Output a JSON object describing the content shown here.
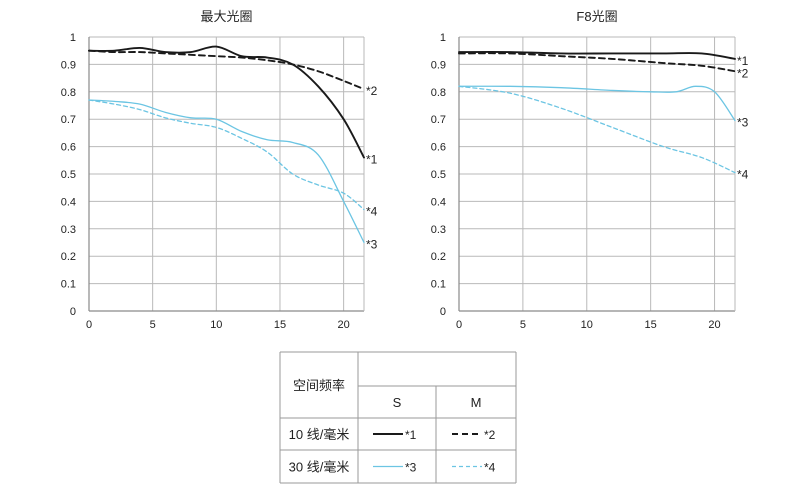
{
  "colors": {
    "dark": "#1a1a1a",
    "light": "#6cc5e3",
    "grid": "#b9b9b9",
    "axis": "#8a8a8a",
    "text": "#222222"
  },
  "chart_data": [
    {
      "type": "line",
      "title": "最大光圈",
      "xlim": [
        0,
        21.6
      ],
      "ylim": [
        0,
        1
      ],
      "x_ticks": [
        "0",
        "5",
        "10",
        "15",
        "20"
      ],
      "y_ticks": [
        "0",
        "0.1",
        "0.2",
        "0.3",
        "0.4",
        "0.5",
        "0.6",
        "0.7",
        "0.8",
        "0.9",
        "1"
      ],
      "grid": true,
      "series": [
        {
          "name": "*1",
          "color": "dark",
          "dash": "solid",
          "points": [
            [
              0,
              0.95
            ],
            [
              2,
              0.95
            ],
            [
              4,
              0.96
            ],
            [
              6,
              0.945
            ],
            [
              8,
              0.945
            ],
            [
              10,
              0.965
            ],
            [
              12,
              0.93
            ],
            [
              14,
              0.925
            ],
            [
              16,
              0.9
            ],
            [
              18,
              0.82
            ],
            [
              20,
              0.7
            ],
            [
              21.6,
              0.56
            ]
          ]
        },
        {
          "name": "*2",
          "color": "dark",
          "dash": "dashed",
          "points": [
            [
              0,
              0.95
            ],
            [
              2,
              0.945
            ],
            [
              4,
              0.945
            ],
            [
              6,
              0.94
            ],
            [
              8,
              0.935
            ],
            [
              10,
              0.93
            ],
            [
              12,
              0.925
            ],
            [
              14,
              0.915
            ],
            [
              16,
              0.9
            ],
            [
              18,
              0.875
            ],
            [
              20,
              0.84
            ],
            [
              21.6,
              0.81
            ]
          ]
        },
        {
          "name": "*3",
          "color": "light",
          "dash": "solid",
          "points": [
            [
              0,
              0.77
            ],
            [
              2,
              0.765
            ],
            [
              4,
              0.755
            ],
            [
              6,
              0.725
            ],
            [
              8,
              0.705
            ],
            [
              10,
              0.7
            ],
            [
              12,
              0.655
            ],
            [
              14,
              0.625
            ],
            [
              16,
              0.615
            ],
            [
              18,
              0.57
            ],
            [
              20,
              0.4
            ],
            [
              21.6,
              0.25
            ]
          ]
        },
        {
          "name": "*4",
          "color": "light",
          "dash": "dashed",
          "points": [
            [
              0,
              0.77
            ],
            [
              2,
              0.755
            ],
            [
              4,
              0.735
            ],
            [
              6,
              0.705
            ],
            [
              8,
              0.685
            ],
            [
              10,
              0.67
            ],
            [
              12,
              0.63
            ],
            [
              14,
              0.58
            ],
            [
              16,
              0.5
            ],
            [
              18,
              0.46
            ],
            [
              20,
              0.43
            ],
            [
              21.6,
              0.37
            ]
          ]
        }
      ]
    },
    {
      "type": "line",
      "title": "F8光圈",
      "xlim": [
        0,
        21.6
      ],
      "ylim": [
        0,
        1
      ],
      "x_ticks": [
        "0",
        "5",
        "10",
        "15",
        "20"
      ],
      "y_ticks": [
        "0",
        "0.1",
        "0.2",
        "0.3",
        "0.4",
        "0.5",
        "0.6",
        "0.7",
        "0.8",
        "0.9",
        "1"
      ],
      "grid": true,
      "series": [
        {
          "name": "*1",
          "color": "dark",
          "dash": "solid",
          "points": [
            [
              0,
              0.945
            ],
            [
              4,
              0.945
            ],
            [
              8,
              0.94
            ],
            [
              12,
              0.94
            ],
            [
              16,
              0.94
            ],
            [
              19,
              0.94
            ],
            [
              21.6,
              0.92
            ]
          ]
        },
        {
          "name": "*2",
          "color": "dark",
          "dash": "dashed",
          "points": [
            [
              0,
              0.94
            ],
            [
              4,
              0.94
            ],
            [
              8,
              0.93
            ],
            [
              12,
              0.92
            ],
            [
              16,
              0.905
            ],
            [
              19,
              0.895
            ],
            [
              21.6,
              0.875
            ]
          ]
        },
        {
          "name": "*3",
          "color": "light",
          "dash": "solid",
          "points": [
            [
              0,
              0.82
            ],
            [
              4,
              0.82
            ],
            [
              8,
              0.815
            ],
            [
              12,
              0.805
            ],
            [
              15,
              0.8
            ],
            [
              17,
              0.8
            ],
            [
              18.5,
              0.82
            ],
            [
              20,
              0.8
            ],
            [
              21.6,
              0.695
            ]
          ]
        },
        {
          "name": "*4",
          "color": "light",
          "dash": "dashed",
          "points": [
            [
              0,
              0.82
            ],
            [
              4,
              0.795
            ],
            [
              8,
              0.74
            ],
            [
              12,
              0.67
            ],
            [
              16,
              0.6
            ],
            [
              19,
              0.56
            ],
            [
              21.6,
              0.505
            ]
          ]
        }
      ]
    }
  ],
  "legend_table": {
    "header": "空间频率",
    "col_s": "S",
    "col_m": "M",
    "rows": [
      {
        "label": "10 线/毫米",
        "s_mark": "*1",
        "m_mark": "*2",
        "color": "dark"
      },
      {
        "label": "30 线/毫米",
        "s_mark": "*3",
        "m_mark": "*4",
        "color": "light"
      }
    ]
  }
}
